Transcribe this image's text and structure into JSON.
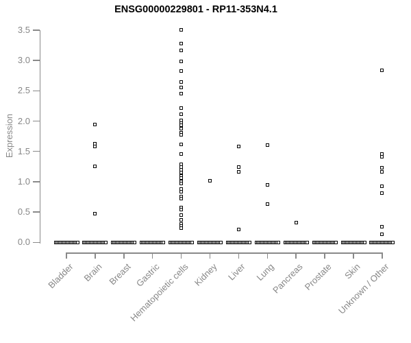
{
  "chart_data": {
    "type": "scatter",
    "title": "ENSG00000229801 - RP11-353N4.1",
    "xlabel": "",
    "ylabel": "Expression",
    "ylim": [
      0.0,
      3.5
    ],
    "ytick_labels": [
      "0.0",
      "0.5",
      "1.0",
      "1.5",
      "2.0",
      "2.5",
      "3.0",
      "3.5"
    ],
    "grid": false,
    "legend": "none",
    "point_style": "small open black square",
    "categories": [
      "Bladder",
      "Brain",
      "Breast",
      "Gastric",
      "Hematopoietic cells",
      "Kidney",
      "Liver",
      "Lung",
      "Pancreas",
      "Prostate",
      "Skin",
      "Unknown / Other"
    ],
    "series": [
      {
        "category": "Bladder",
        "values": []
      },
      {
        "category": "Brain",
        "values": [
          1.94,
          1.63,
          1.58,
          1.25,
          0.47
        ]
      },
      {
        "category": "Breast",
        "values": []
      },
      {
        "category": "Gastric",
        "values": []
      },
      {
        "category": "Hematopoietic cells",
        "values": [
          3.51,
          3.28,
          3.17,
          2.99,
          2.83,
          2.65,
          2.55,
          2.45,
          2.22,
          2.11,
          2.01,
          1.97,
          1.93,
          1.88,
          1.81,
          1.77,
          1.62,
          1.46,
          1.29,
          1.24,
          1.2,
          1.15,
          1.1,
          1.06,
          1.01,
          0.97,
          0.88,
          0.83,
          0.76,
          0.72,
          0.57,
          0.54,
          0.45,
          0.37,
          0.3,
          0.27,
          0.23
        ]
      },
      {
        "category": "Kidney",
        "values": [
          1.02
        ]
      },
      {
        "category": "Liver",
        "values": [
          1.58,
          1.24,
          1.16,
          0.21
        ]
      },
      {
        "category": "Lung",
        "values": [
          1.61,
          0.95,
          0.63
        ]
      },
      {
        "category": "Pancreas",
        "values": [
          0.33
        ]
      },
      {
        "category": "Prostate",
        "values": []
      },
      {
        "category": "Skin",
        "values": []
      },
      {
        "category": "Unknown / Other",
        "values": [
          2.84,
          1.46,
          1.41,
          1.23,
          1.16,
          0.92,
          0.81,
          0.26,
          0.13
        ]
      }
    ],
    "zero_row": {
      "value": 0.0,
      "per_category": true,
      "approx_points": 17,
      "note": "every category shows a dense horizontal cluster of points at expression 0"
    },
    "colors": {
      "points": "#000000",
      "axis": "#898989",
      "tick_labels": "#878787",
      "title": "#000000",
      "background": "#ffffff"
    }
  }
}
